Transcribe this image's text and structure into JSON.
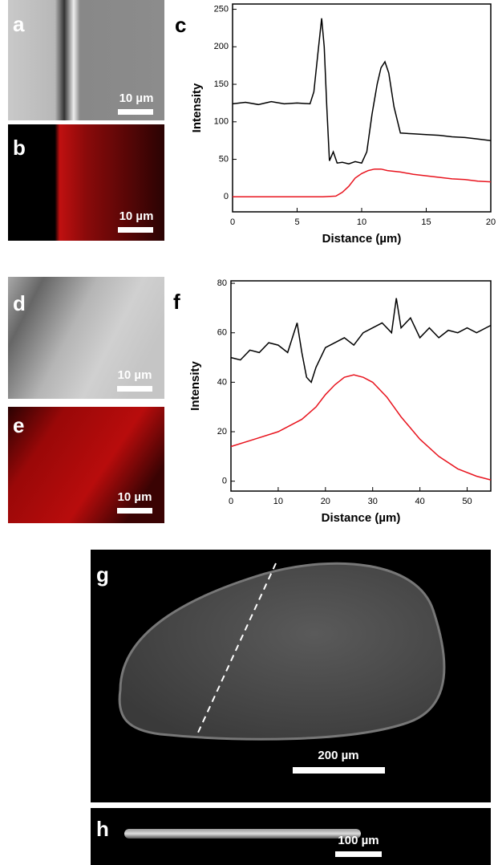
{
  "chart_data": [
    {
      "type": "line",
      "panel_label": "c",
      "xlabel": "Distance (µm)",
      "ylabel": "Intensity",
      "xlim": [
        0,
        20
      ],
      "xticks": [
        0,
        5,
        10,
        15,
        20
      ],
      "ylim": [
        -20,
        257
      ],
      "yticks": [
        0,
        50,
        100,
        150,
        200,
        250
      ],
      "series": [
        {
          "color": "#000000",
          "x": [
            0,
            1,
            2,
            3,
            4,
            5,
            6,
            6.3,
            6.6,
            6.9,
            7.1,
            7.3,
            7.5,
            7.8,
            8.1,
            8.5,
            9,
            9.5,
            10,
            10.4,
            10.8,
            11.2,
            11.5,
            11.8,
            12.1,
            12.5,
            13,
            14,
            15,
            16,
            17,
            18,
            19,
            20
          ],
          "values": [
            124,
            126,
            123,
            127,
            124,
            125,
            124,
            140,
            190,
            238,
            200,
            120,
            48,
            60,
            45,
            46,
            44,
            47,
            45,
            60,
            110,
            150,
            172,
            180,
            165,
            120,
            85,
            84,
            83,
            82,
            80,
            79,
            77,
            75
          ]
        },
        {
          "color": "#e8141e",
          "x": [
            0,
            2,
            4,
            6,
            7,
            8,
            8.5,
            9,
            9.5,
            10,
            10.5,
            11,
            11.5,
            12,
            13,
            14,
            15,
            16,
            17,
            18,
            19,
            20
          ],
          "values": [
            0,
            0,
            0,
            0,
            0,
            1,
            6,
            14,
            25,
            31,
            35,
            37,
            37,
            35,
            33,
            30,
            28,
            26,
            24,
            23,
            21,
            20
          ]
        }
      ]
    },
    {
      "type": "line",
      "panel_label": "f",
      "xlabel": "Distance (µm)",
      "ylabel": "Intensity",
      "xlim": [
        0,
        55
      ],
      "xticks": [
        0,
        10,
        20,
        30,
        40,
        50
      ],
      "ylim": [
        -4,
        81
      ],
      "yticks": [
        0,
        20,
        40,
        60,
        80
      ],
      "series": [
        {
          "color": "#000000",
          "x": [
            0,
            2,
            4,
            6,
            8,
            10,
            12,
            13,
            14,
            15,
            16,
            17,
            18,
            20,
            22,
            24,
            26,
            28,
            30,
            32,
            34,
            35,
            36,
            38,
            40,
            42,
            44,
            46,
            48,
            50,
            52,
            55
          ],
          "values": [
            50,
            49,
            53,
            52,
            56,
            55,
            52,
            58,
            64,
            52,
            42,
            40,
            46,
            54,
            56,
            58,
            55,
            60,
            62,
            64,
            60,
            74,
            62,
            66,
            58,
            62,
            58,
            61,
            60,
            62,
            60,
            63
          ]
        },
        {
          "color": "#e8141e",
          "x": [
            0,
            5,
            10,
            15,
            18,
            20,
            22,
            24,
            26,
            28,
            30,
            33,
            36,
            40,
            44,
            48,
            52,
            55
          ],
          "values": [
            14,
            17,
            20,
            25,
            30,
            35,
            39,
            42,
            43,
            42,
            40,
            34,
            26,
            17,
            10,
            5,
            2,
            0.5
          ]
        }
      ]
    }
  ],
  "panels": [
    {
      "label": "a",
      "scale_bar": "10 µm"
    },
    {
      "label": "b",
      "scale_bar": "10 µm"
    },
    {
      "label": "d",
      "scale_bar": "10 µm"
    },
    {
      "label": "e",
      "scale_bar": "10 µm"
    },
    {
      "label": "g",
      "scale_bar": "200 µm"
    },
    {
      "label": "h",
      "scale_bar": "100 µm"
    }
  ]
}
